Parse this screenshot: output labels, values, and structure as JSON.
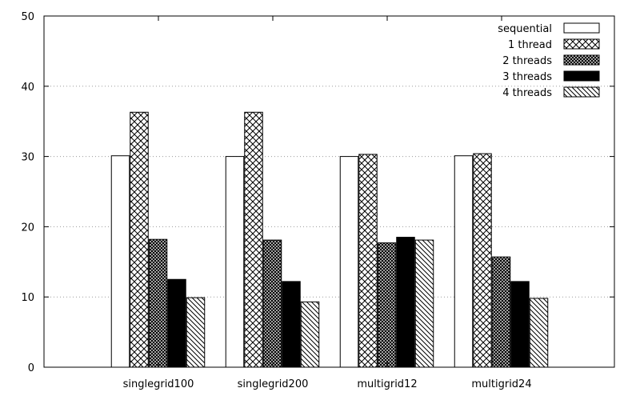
{
  "chart_data": {
    "type": "bar",
    "title": "",
    "xlabel": "",
    "ylabel": "",
    "ylim": [
      0,
      50
    ],
    "yticks": [
      0,
      10,
      20,
      30,
      40,
      50
    ],
    "grid": true,
    "legend_position": "top-right",
    "categories": [
      "singlegrid100",
      "singlegrid200",
      "multigrid12",
      "multigrid24"
    ],
    "series": [
      {
        "name": "sequential",
        "pattern": "empty",
        "values": [
          30.1,
          30.0,
          30.0,
          30.1
        ]
      },
      {
        "name": "1 thread",
        "pattern": "crosshatch",
        "values": [
          36.3,
          36.3,
          30.3,
          30.4
        ]
      },
      {
        "name": "2 threads",
        "pattern": "dense-crosshatch",
        "values": [
          18.2,
          18.1,
          17.7,
          15.7
        ]
      },
      {
        "name": "3 threads",
        "pattern": "solid",
        "values": [
          12.5,
          12.2,
          18.5,
          12.2
        ]
      },
      {
        "name": "4 threads",
        "pattern": "diagonal",
        "values": [
          9.9,
          9.3,
          18.1,
          9.8
        ]
      }
    ],
    "colors": {
      "stroke": "#000000",
      "grid": "#9a9a9a",
      "background": "#ffffff"
    }
  }
}
